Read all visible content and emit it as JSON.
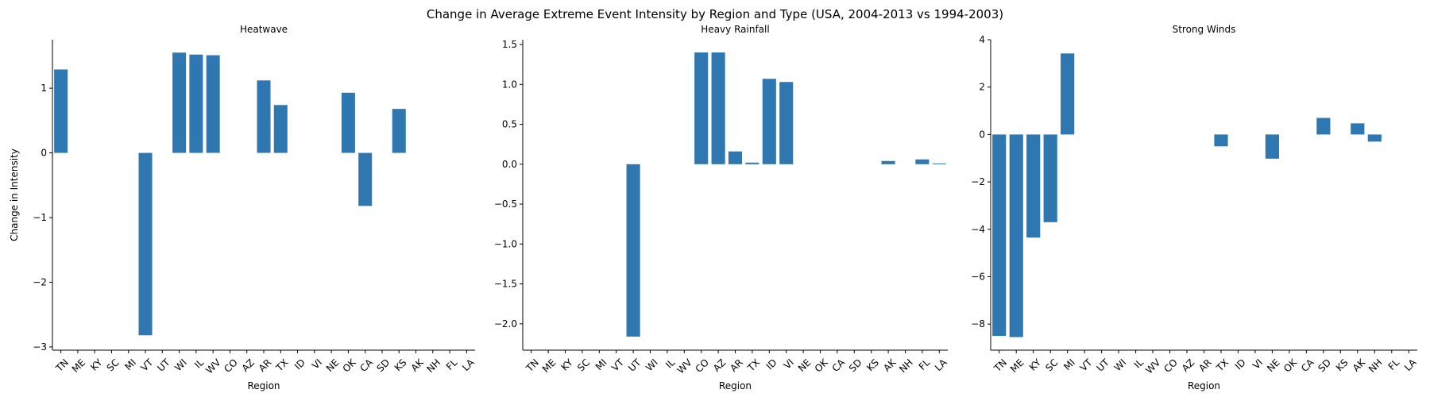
{
  "figure": {
    "title": "Change in Average Extreme Event Intensity by Region and Type (USA, 2004-2013 vs 1994-2003)",
    "bar_color": "#2e77b0"
  },
  "chart_data": [
    {
      "type": "bar",
      "title": "Heatwave",
      "xlabel": "Region",
      "ylabel": "Change in Intensity",
      "categories": [
        "TN",
        "ME",
        "KY",
        "SC",
        "MI",
        "VT",
        "UT",
        "WI",
        "IL",
        "WV",
        "CO",
        "AZ",
        "AR",
        "TX",
        "ID",
        "VI",
        "NE",
        "OK",
        "CA",
        "SD",
        "KS",
        "AK",
        "NH",
        "FL",
        "LA"
      ],
      "values": [
        1.29,
        null,
        null,
        null,
        null,
        -2.82,
        null,
        1.55,
        1.52,
        1.51,
        null,
        null,
        1.12,
        0.74,
        null,
        null,
        null,
        0.93,
        -0.82,
        null,
        0.68,
        null,
        null,
        null,
        null
      ],
      "ylim": [
        -3.05,
        1.75
      ],
      "yticks": [
        -3,
        -2,
        -1,
        0,
        1
      ],
      "ytick_labels": [
        "−3",
        "−2",
        "−1",
        "0",
        "1"
      ],
      "grid": false
    },
    {
      "type": "bar",
      "title": "Heavy Rainfall",
      "xlabel": "Region",
      "ylabel": "",
      "categories": [
        "TN",
        "ME",
        "KY",
        "SC",
        "MI",
        "VT",
        "UT",
        "WI",
        "IL",
        "WV",
        "CO",
        "AZ",
        "AR",
        "TX",
        "ID",
        "VI",
        "NE",
        "OK",
        "CA",
        "SD",
        "KS",
        "AK",
        "NH",
        "FL",
        "LA"
      ],
      "values": [
        null,
        null,
        null,
        null,
        null,
        null,
        -2.16,
        null,
        null,
        null,
        1.4,
        1.4,
        0.16,
        0.02,
        1.07,
        1.03,
        null,
        null,
        null,
        null,
        null,
        0.04,
        null,
        0.06,
        0.01
      ],
      "ylim": [
        -2.33,
        1.56
      ],
      "yticks": [
        -2,
        -1.5,
        -1,
        -0.5,
        0,
        0.5,
        1,
        1.5
      ],
      "ytick_labels": [
        "−2.0",
        "−1.5",
        "−1.0",
        "−0.5",
        "0.0",
        "0.5",
        "1.0",
        "1.5"
      ],
      "grid": false
    },
    {
      "type": "bar",
      "title": "Strong Winds",
      "xlabel": "Region",
      "ylabel": "",
      "categories": [
        "TN",
        "ME",
        "KY",
        "SC",
        "MI",
        "VT",
        "UT",
        "WI",
        "IL",
        "WV",
        "CO",
        "AZ",
        "AR",
        "TX",
        "ID",
        "VI",
        "NE",
        "OK",
        "CA",
        "SD",
        "KS",
        "AK",
        "NH",
        "FL",
        "LA"
      ],
      "values": [
        -8.5,
        -8.55,
        -4.35,
        -3.7,
        3.42,
        null,
        null,
        null,
        null,
        null,
        null,
        null,
        null,
        -0.5,
        null,
        null,
        -1.02,
        null,
        null,
        0.7,
        null,
        0.47,
        -0.3,
        null,
        null
      ],
      "ylim": [
        -9.1,
        4.0
      ],
      "yticks": [
        -8,
        -6,
        -4,
        -2,
        0,
        2,
        4
      ],
      "ytick_labels": [
        "−8",
        "−6",
        "−4",
        "−2",
        "0",
        "2",
        "4"
      ],
      "grid": false
    }
  ]
}
